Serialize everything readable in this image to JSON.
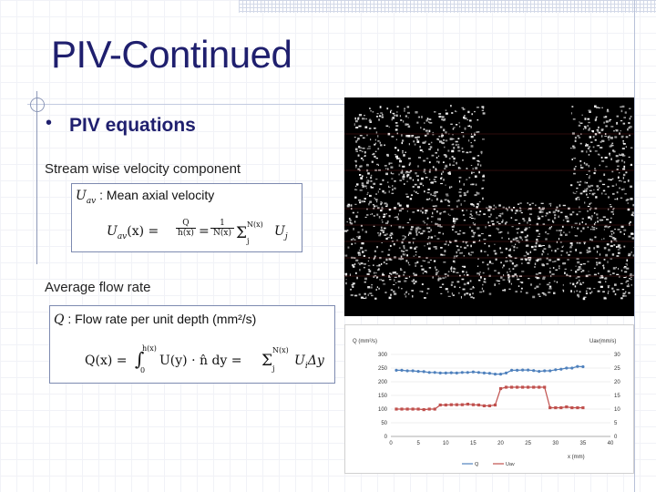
{
  "slide": {
    "title": "PIV-Continued",
    "bullet_symbol": "•",
    "bullet_text": "PIV equations",
    "label_stream": "Stream wise velocity component",
    "label_flow": "Average flow rate"
  },
  "eq1": {
    "definition_symbol": "U",
    "definition_sub": "av",
    "definition_text": " : Mean axial velocity",
    "lhs": "U",
    "lhs_sub": "av",
    "lhs_arg": "(x) =",
    "frac_num": "Q",
    "frac_den": "h(x)",
    "equals": "=",
    "frac2_num": "1",
    "frac2_den": "N(x)",
    "sum": "Σ",
    "sum_upper": "N(x)",
    "sum_lower": "j",
    "term": "U",
    "term_sub": "j"
  },
  "eq2": {
    "definition_symbol": "Q",
    "definition_text": " : Flow rate per unit depth (mm²/s)",
    "lhs": "Q(x) =",
    "integral": "∫",
    "int_upper": "h(x)",
    "int_lower": "0",
    "integrand": "U(y) · n̂ dy =",
    "sum": "Σ",
    "sum_upper": "N(x)",
    "sum_lower": "j",
    "term": "U",
    "term_sub": "i",
    "term_tail": "Δy"
  },
  "chart_data": {
    "type": "line",
    "title": "",
    "left_axis_label": "Q (mm²/s)",
    "right_axis_label": "Uav(mm/s)",
    "xlabel": "x (mm)",
    "xlim": [
      0,
      40
    ],
    "left_ylim": [
      0,
      300
    ],
    "right_ylim": [
      0,
      30
    ],
    "x_ticks": [
      "0",
      "5",
      "10",
      "15",
      "20",
      "25",
      "30",
      "35",
      "40"
    ],
    "left_ticks": [
      "0",
      "50",
      "100",
      "150",
      "200",
      "250",
      "300"
    ],
    "right_ticks": [
      "0",
      "5",
      "10",
      "15",
      "20",
      "25",
      "30"
    ],
    "series": [
      {
        "name": "Q",
        "axis": "left",
        "color": "#4f81bd",
        "x": [
          1,
          2,
          3,
          4,
          5,
          6,
          7,
          8,
          9,
          10,
          11,
          12,
          13,
          14,
          15,
          16,
          17,
          18,
          19,
          20,
          21,
          22,
          23,
          24,
          25,
          26,
          27,
          28,
          29,
          30,
          31,
          32,
          33,
          34,
          35
        ],
        "y": [
          242,
          242,
          240,
          240,
          238,
          237,
          234,
          234,
          232,
          232,
          233,
          232,
          234,
          234,
          236,
          234,
          232,
          231,
          228,
          228,
          232,
          242,
          242,
          243,
          243,
          241,
          238,
          240,
          240,
          244,
          246,
          250,
          250,
          256,
          255
        ]
      },
      {
        "name": "Uav",
        "axis": "right",
        "color": "#c0504d",
        "x": [
          1,
          2,
          3,
          4,
          5,
          6,
          7,
          8,
          9,
          10,
          11,
          12,
          13,
          14,
          15,
          16,
          17,
          18,
          19,
          20,
          21,
          22,
          23,
          24,
          25,
          26,
          27,
          28,
          29,
          30,
          31,
          32,
          33,
          34,
          35
        ],
        "y": [
          10,
          10,
          10,
          10,
          10,
          9.8,
          10,
          10,
          11.5,
          11.5,
          11.6,
          11.6,
          11.6,
          11.8,
          11.6,
          11.5,
          11.2,
          11.2,
          11.5,
          17.5,
          18,
          18,
          18,
          18,
          18,
          18,
          18,
          18,
          10.5,
          10.5,
          10.5,
          10.8,
          10.5,
          10.5,
          10.5
        ]
      }
    ],
    "legend_position": "bottom"
  }
}
